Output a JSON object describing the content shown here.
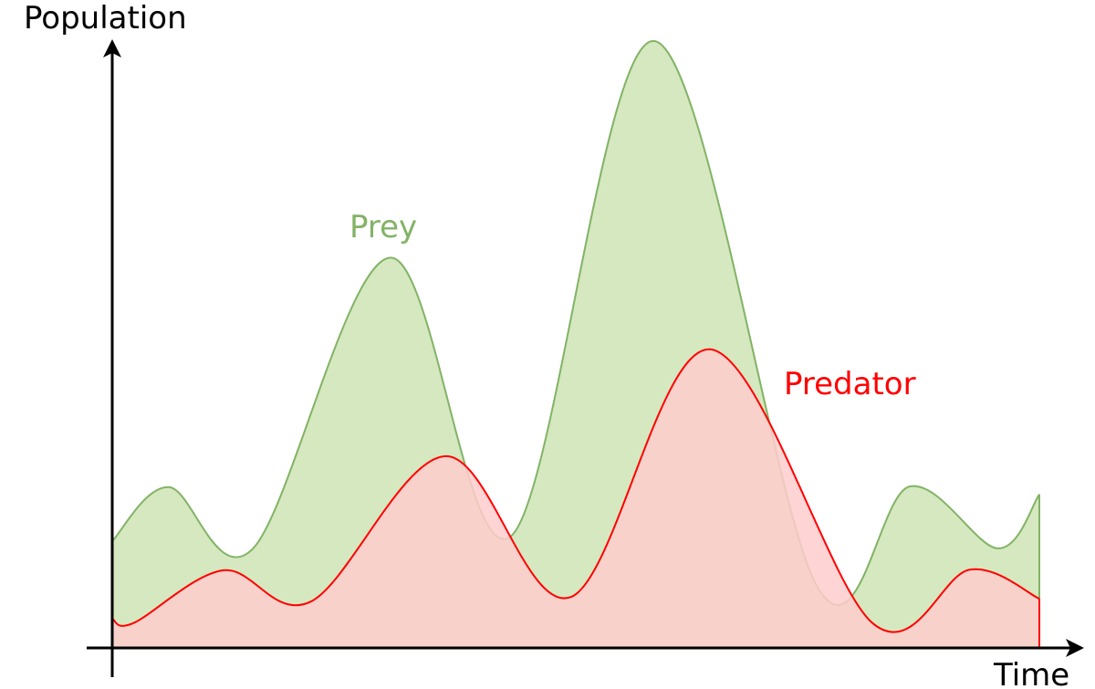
{
  "chart_data": {
    "type": "area",
    "xlabel": "Time",
    "ylabel": "Population",
    "axis_ticks": "none",
    "grid": false,
    "xlim": [
      0,
      100
    ],
    "ylim": [
      0,
      100
    ],
    "series": [
      {
        "name": "Prey",
        "line_color": "#82b366",
        "fill_color": "#d5e8bf",
        "label_color": "#82b366",
        "points": [
          [
            0,
            17.6
          ],
          [
            6.1,
            26.5
          ],
          [
            15.2,
            16.4
          ],
          [
            30,
            64.3
          ],
          [
            43,
            18.4
          ],
          [
            58.5,
            100
          ],
          [
            76,
            10.2
          ],
          [
            86,
            26.6
          ],
          [
            95.5,
            16.4
          ],
          [
            100,
            25.3
          ]
        ]
      },
      {
        "name": "Predator",
        "line_color": "#ff0000",
        "fill_color": "#ffcccc",
        "label_color": "#ff0000",
        "points": [
          [
            0,
            4.8
          ],
          [
            2.3,
            4.1
          ],
          [
            12,
            12.8
          ],
          [
            21.5,
            7.7
          ],
          [
            36,
            31.6
          ],
          [
            49.5,
            8.4
          ],
          [
            64.5,
            49.2
          ],
          [
            82,
            4.1
          ],
          [
            92.5,
            12.9
          ],
          [
            100,
            8.1
          ]
        ]
      }
    ]
  }
}
